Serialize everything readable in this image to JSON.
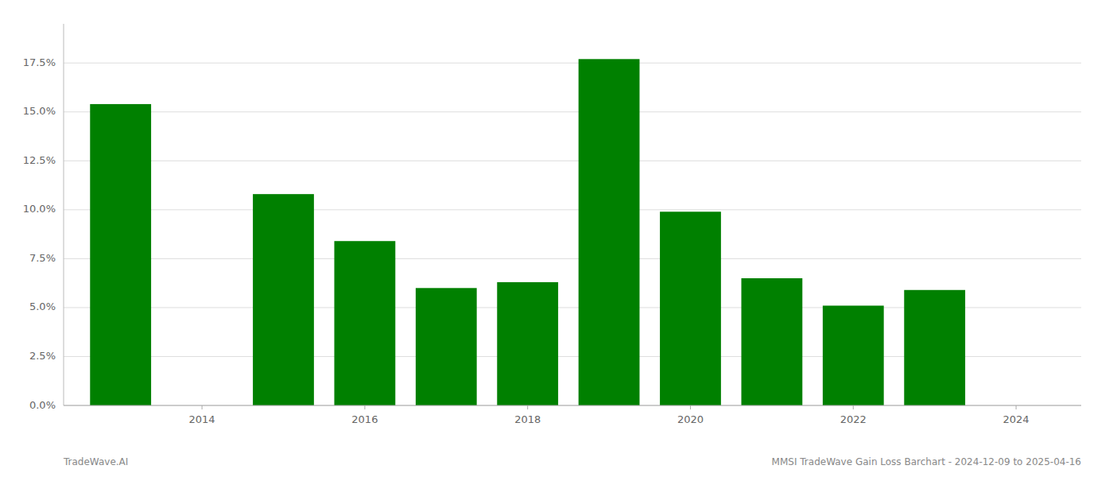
{
  "chart_data": {
    "type": "bar",
    "x": [
      2013,
      2015,
      2016,
      2017,
      2018,
      2019,
      2020,
      2021,
      2022,
      2023
    ],
    "values": [
      0.154,
      0.108,
      0.084,
      0.06,
      0.063,
      0.177,
      0.099,
      0.065,
      0.051,
      0.059
    ],
    "color": "#008000",
    "xlim": [
      2012.3,
      2024.8
    ],
    "xticks": [
      2014,
      2016,
      2018,
      2020,
      2022,
      2024
    ],
    "ylim": [
      0,
      0.195
    ],
    "yticks": [
      {
        "value": 0.0,
        "label": "0.0%"
      },
      {
        "value": 0.025,
        "label": "2.5%"
      },
      {
        "value": 0.05,
        "label": "5.0%"
      },
      {
        "value": 0.075,
        "label": "7.5%"
      },
      {
        "value": 0.1,
        "label": "10.0%"
      },
      {
        "value": 0.125,
        "label": "12.5%"
      },
      {
        "value": 0.15,
        "label": "15.0%"
      },
      {
        "value": 0.175,
        "label": "17.5%"
      }
    ],
    "grid": true,
    "annotations": [
      "TradeWave.AI",
      "MMSI TradeWave Gain Loss Barchart - 2024-12-09 to 2025-04-16"
    ]
  }
}
